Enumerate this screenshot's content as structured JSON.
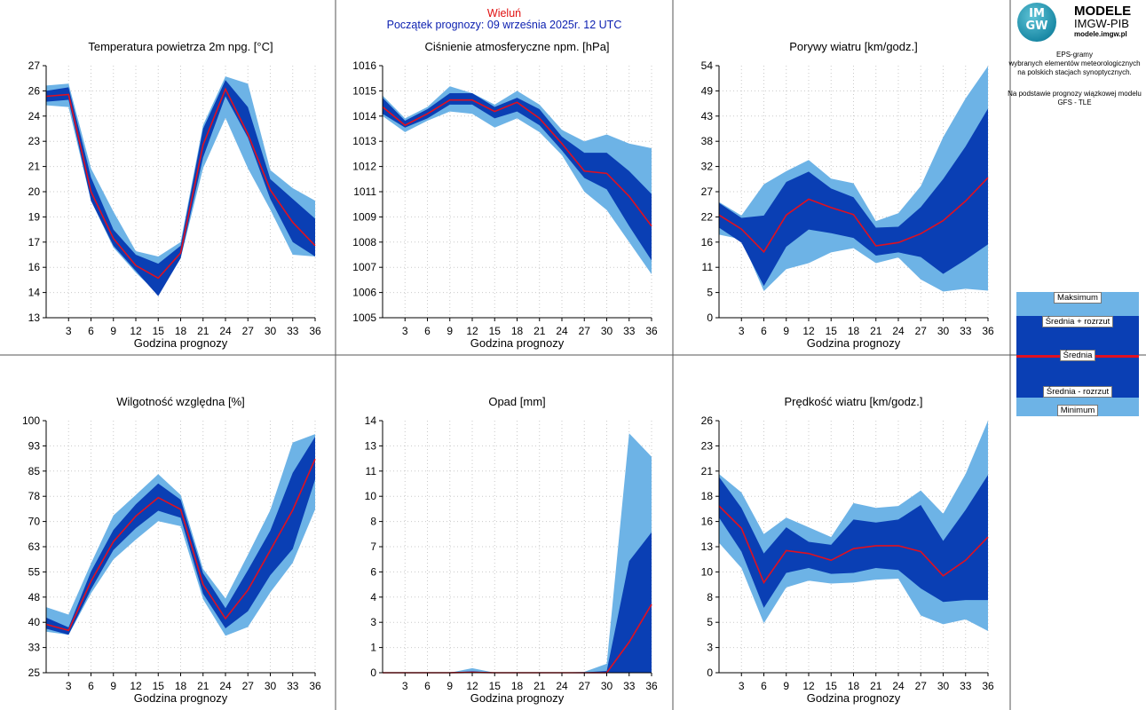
{
  "header": {
    "station": "Wieluń",
    "forecast_start": "Początek prognozy: 09 września 2025r. 12 UTC"
  },
  "logo": {
    "mark": "IM GW",
    "line1": "MODELE",
    "line2": "IMGW-PIB",
    "line3": "modele.imgw.pl"
  },
  "info": {
    "line1": "EPS-gramy",
    "line2": "wybranych elementów meteorologicznych",
    "line3": "na polskich stacjach  synoptycznych.",
    "line4": "Na podstawie prognozy wiązkowej modelu",
    "line5": "GFS - TLE"
  },
  "legend": {
    "max": "Maksimum",
    "mean_plus": "Średnia + rozrzut",
    "mean": "Średnia",
    "mean_minus": "Średnia - rozrzut",
    "min": "Minimum"
  },
  "colors": {
    "minmax_band": "#6db3e6",
    "spread_band": "#0a3fb4",
    "mean_line": "#e01020",
    "title_station": "#e01010",
    "title_start": "#0b1fb0"
  },
  "chart_data": [
    {
      "type": "area",
      "title": "Temperatura powietrza 2m npg. [°C]",
      "xlabel": "Godzina prognozy",
      "x": [
        0,
        3,
        6,
        9,
        12,
        15,
        18,
        21,
        24,
        27,
        30,
        33,
        36
      ],
      "xticks": [
        3,
        6,
        9,
        12,
        15,
        18,
        21,
        24,
        27,
        30,
        33,
        36
      ],
      "ylim": [
        13,
        27
      ],
      "yticks": [
        "13",
        "14",
        "16",
        "17",
        "19",
        "20",
        "21",
        "23",
        "24",
        "26",
        "27"
      ],
      "series": [
        {
          "name": "Maksimum",
          "values": [
            25.9,
            26.0,
            21.3,
            18.9,
            16.7,
            16.4,
            17.2,
            23.7,
            26.4,
            26.0,
            21.2,
            20.2,
            19.5
          ]
        },
        {
          "name": "Średnia + rozrzut",
          "values": [
            25.6,
            25.8,
            20.8,
            17.9,
            16.5,
            16.0,
            17.0,
            23.5,
            26.2,
            24.7,
            20.7,
            19.6,
            18.5
          ]
        },
        {
          "name": "Średnia",
          "values": [
            25.3,
            25.4,
            20.0,
            17.4,
            15.9,
            15.2,
            16.6,
            22.6,
            25.7,
            23.2,
            20.1,
            18.3,
            17.0
          ]
        },
        {
          "name": "Średnia - rozrzut",
          "values": [
            25.0,
            25.1,
            19.5,
            17.0,
            15.6,
            14.2,
            16.3,
            21.9,
            25.3,
            23.0,
            19.6,
            17.2,
            16.4
          ]
        },
        {
          "name": "Minimum",
          "values": [
            24.8,
            24.7,
            19.5,
            16.9,
            15.5,
            14.3,
            16.3,
            21.3,
            24.1,
            21.3,
            19.0,
            16.5,
            16.4
          ]
        }
      ]
    },
    {
      "type": "area",
      "title": "Ciśnienie atmosferyczne npm. [hPa]",
      "xlabel": "Godzina prognozy",
      "x": [
        0,
        3,
        6,
        9,
        12,
        15,
        18,
        21,
        24,
        27,
        30,
        33,
        36
      ],
      "xticks": [
        3,
        6,
        9,
        12,
        15,
        18,
        21,
        24,
        27,
        30,
        33,
        36
      ],
      "ylim": [
        1005,
        1016
      ],
      "yticks": [
        "1005",
        "1006",
        "1007",
        "1008",
        "1009",
        "1011",
        "1012",
        "1013",
        "1014",
        "1015",
        "1016"
      ],
      "series": [
        {
          "name": "Maksimum",
          "values": [
            1014.7,
            1013.7,
            1014.2,
            1015.1,
            1014.8,
            1014.3,
            1014.9,
            1014.3,
            1013.2,
            1012.7,
            1013.0,
            1012.6,
            1012.4
          ]
        },
        {
          "name": "Średnia + rozrzut",
          "values": [
            1014.6,
            1013.6,
            1014.1,
            1014.8,
            1014.8,
            1014.2,
            1014.6,
            1014.1,
            1012.9,
            1012.2,
            1012.2,
            1011.4,
            1010.4
          ]
        },
        {
          "name": "Średnia",
          "values": [
            1014.2,
            1013.4,
            1013.9,
            1014.5,
            1014.5,
            1014.0,
            1014.4,
            1013.7,
            1012.6,
            1011.4,
            1011.3,
            1010.3,
            1009.0
          ]
        },
        {
          "name": "Średnia - rozrzut",
          "values": [
            1013.9,
            1013.3,
            1013.7,
            1014.3,
            1014.3,
            1013.7,
            1014.0,
            1013.4,
            1012.3,
            1011.1,
            1010.6,
            1009.0,
            1007.5
          ]
        },
        {
          "name": "Minimum",
          "values": [
            1013.8,
            1013.1,
            1013.6,
            1014.0,
            1013.9,
            1013.3,
            1013.7,
            1013.1,
            1012.1,
            1010.5,
            1009.7,
            1008.3,
            1006.9
          ]
        }
      ]
    },
    {
      "type": "area",
      "title": "Porywy wiatru [km/godz.]",
      "xlabel": "Godzina prognozy",
      "x": [
        0,
        3,
        6,
        9,
        12,
        15,
        18,
        21,
        24,
        27,
        30,
        33,
        36
      ],
      "xticks": [
        3,
        6,
        9,
        12,
        15,
        18,
        21,
        24,
        27,
        30,
        33,
        36
      ],
      "ylim": [
        0,
        54
      ],
      "yticks": [
        "0",
        "5",
        "11",
        "16",
        "22",
        "27",
        "32",
        "38",
        "43",
        "49",
        "54"
      ],
      "series": [
        {
          "name": "Maksimum",
          "values": [
            24.8,
            21.9,
            28.6,
            31.4,
            33.8,
            29.8,
            28.8,
            20.7,
            22.4,
            28.2,
            38.7,
            47.0,
            53.9
          ]
        },
        {
          "name": "Średnia + rozrzut",
          "values": [
            24.6,
            21.4,
            21.9,
            29.1,
            31.3,
            27.7,
            25.8,
            19.3,
            19.5,
            23.7,
            29.7,
            36.7,
            44.8
          ]
        },
        {
          "name": "Średnia",
          "values": [
            22.0,
            19.0,
            14.1,
            22.0,
            25.4,
            23.6,
            22.1,
            15.4,
            16.1,
            18.0,
            20.8,
            25.0,
            30.0
          ]
        },
        {
          "name": "Średnia - rozrzut",
          "values": [
            19.3,
            16.1,
            6.8,
            15.2,
            18.9,
            18.1,
            17.1,
            13.3,
            14.0,
            13.0,
            9.4,
            12.4,
            15.7
          ]
        },
        {
          "name": "Minimum",
          "values": [
            17.8,
            16.8,
            5.7,
            10.4,
            11.7,
            14.0,
            14.9,
            11.7,
            12.9,
            8.2,
            5.6,
            6.2,
            5.8
          ]
        }
      ]
    },
    {
      "type": "area",
      "title": "Wilgotność względna [%]",
      "xlabel": "Godzina prognozy",
      "x": [
        0,
        3,
        6,
        9,
        12,
        15,
        18,
        21,
        24,
        27,
        30,
        33,
        36
      ],
      "xticks": [
        3,
        6,
        9,
        12,
        15,
        18,
        21,
        24,
        27,
        30,
        33,
        36
      ],
      "ylim": [
        25,
        100
      ],
      "yticks": [
        "25",
        "33",
        "40",
        "48",
        "55",
        "63",
        "70",
        "78",
        "85",
        "93",
        "100"
      ],
      "series": [
        {
          "name": "Maksimum",
          "values": [
            44.5,
            42.3,
            57.5,
            71.8,
            77.9,
            84.1,
            77.9,
            55.9,
            47.1,
            60.1,
            73.4,
            93.5,
            96.0
          ]
        },
        {
          "name": "Średnia + rozrzut",
          "values": [
            41.4,
            38.5,
            55.1,
            67.5,
            75.1,
            81.3,
            76.5,
            54.6,
            44.2,
            55.5,
            67.3,
            84.5,
            95.2
          ]
        },
        {
          "name": "Średnia",
          "values": [
            39.4,
            37.6,
            52.2,
            64.0,
            71.6,
            77.1,
            73.6,
            51.3,
            41.1,
            49.6,
            61.4,
            73.4,
            88.6
          ]
        },
        {
          "name": "Średnia - rozrzut",
          "values": [
            38.1,
            36.3,
            49.8,
            61.5,
            68.0,
            73.2,
            71.1,
            48.5,
            38.2,
            43.3,
            54.0,
            61.8,
            82.5
          ]
        },
        {
          "name": "Minimum",
          "values": [
            37.2,
            36.3,
            48.6,
            58.7,
            64.6,
            70.1,
            68.6,
            46.9,
            36.0,
            38.6,
            48.9,
            57.7,
            73.6
          ]
        }
      ]
    },
    {
      "type": "area",
      "title": "Opad [mm]",
      "xlabel": "Godzina prognozy",
      "x": [
        0,
        3,
        6,
        9,
        12,
        15,
        18,
        21,
        24,
        27,
        30,
        33,
        36
      ],
      "xticks": [
        3,
        6,
        9,
        12,
        15,
        18,
        21,
        24,
        27,
        30,
        33,
        36
      ],
      "ylim": [
        0,
        14
      ],
      "yticks": [
        "0",
        "1",
        "3",
        "4",
        "6",
        "7",
        "8",
        "10",
        "11",
        "13",
        "14"
      ],
      "series": [
        {
          "name": "Maksimum",
          "values": [
            0,
            0,
            0,
            0,
            0.25,
            0,
            0,
            0,
            0,
            0.05,
            0.5,
            13.3,
            12.0
          ]
        },
        {
          "name": "Średnia + rozrzut",
          "values": [
            0,
            0,
            0,
            0,
            0.08,
            0,
            0,
            0,
            0,
            0.02,
            0.1,
            6.2,
            7.8
          ]
        },
        {
          "name": "Średnia",
          "values": [
            0,
            0,
            0,
            0,
            0.02,
            0,
            0,
            0,
            0,
            0,
            0,
            1.7,
            3.8
          ]
        },
        {
          "name": "Średnia - rozrzut",
          "values": [
            0,
            0,
            0,
            0,
            0,
            0,
            0,
            0,
            0,
            0,
            0,
            0,
            0
          ]
        },
        {
          "name": "Minimum",
          "values": [
            0,
            0,
            0,
            0,
            0,
            0,
            0,
            0,
            0,
            0,
            0,
            0,
            0
          ]
        }
      ]
    },
    {
      "type": "area",
      "title": "Prędkość wiatru [km/godz.]",
      "xlabel": "Godzina prognozy",
      "x": [
        0,
        3,
        6,
        9,
        12,
        15,
        18,
        21,
        24,
        27,
        30,
        33,
        36
      ],
      "xticks": [
        3,
        6,
        9,
        12,
        15,
        18,
        21,
        24,
        27,
        30,
        33,
        36
      ],
      "ylim": [
        0,
        26
      ],
      "yticks": [
        "0",
        "3",
        "5",
        "8",
        "10",
        "13",
        "16",
        "18",
        "21",
        "23",
        "26"
      ],
      "series": [
        {
          "name": "Maksimum",
          "values": [
            20.5,
            18.6,
            14.3,
            16.0,
            15.0,
            14.0,
            17.5,
            17.0,
            17.2,
            18.8,
            16.4,
            20.5,
            26.0
          ]
        },
        {
          "name": "Średnia + rozrzut",
          "values": [
            20.2,
            17.0,
            12.3,
            15.0,
            13.5,
            13.2,
            15.8,
            15.5,
            15.8,
            17.3,
            13.6,
            16.8,
            20.4
          ]
        },
        {
          "name": "Średnia",
          "values": [
            17.2,
            14.9,
            9.3,
            12.6,
            12.3,
            11.6,
            12.8,
            13.1,
            13.1,
            12.5,
            10.0,
            11.6,
            14.0
          ]
        },
        {
          "name": "Średnia - rozrzut",
          "values": [
            16.0,
            12.5,
            6.7,
            10.3,
            10.8,
            10.2,
            10.3,
            10.8,
            10.6,
            8.7,
            7.3,
            7.5,
            7.5
          ]
        },
        {
          "name": "Minimum",
          "values": [
            13.4,
            10.8,
            5.1,
            8.8,
            9.5,
            9.2,
            9.3,
            9.6,
            9.7,
            5.9,
            5.0,
            5.5,
            4.3
          ]
        }
      ]
    }
  ]
}
